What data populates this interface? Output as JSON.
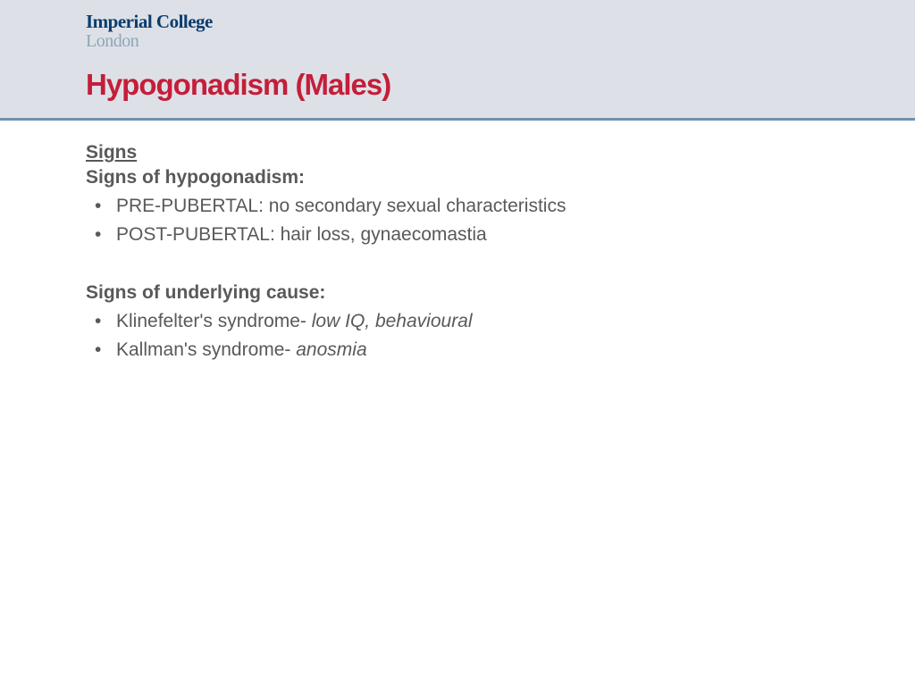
{
  "colors": {
    "header_bg": "#dde1e7",
    "header_border": "#6f91ad",
    "logo_primary": "#0b3c6e",
    "logo_secondary": "#8fa5b8",
    "title": "#c41e3a",
    "body_text": "#595959",
    "page_bg": "#ffffff"
  },
  "typography": {
    "title_fontsize": 33,
    "title_weight": 900,
    "heading_fontsize": 21,
    "body_fontsize": 21,
    "logo_fontsize": 21
  },
  "logo": {
    "line1": "Imperial College",
    "line2": "London"
  },
  "title": "Hypogonadism (Males)",
  "sections": [
    {
      "heading": "Signs",
      "subheading": "Signs of hypogonadism:",
      "bullets": [
        {
          "prefix": "PRE-PUBERTAL: ",
          "text": "no secondary sexual characteristics"
        },
        {
          "prefix": "POST-PUBERTAL: ",
          "text": "hair loss, gynaecomastia"
        }
      ]
    },
    {
      "subheading": "Signs of underlying cause:",
      "bullets": [
        {
          "prefix": "Klinefelter's syndrome- ",
          "italic": "low IQ, behavioural"
        },
        {
          "prefix": "Kallman's syndrome- ",
          "italic": "anosmia"
        }
      ]
    }
  ]
}
